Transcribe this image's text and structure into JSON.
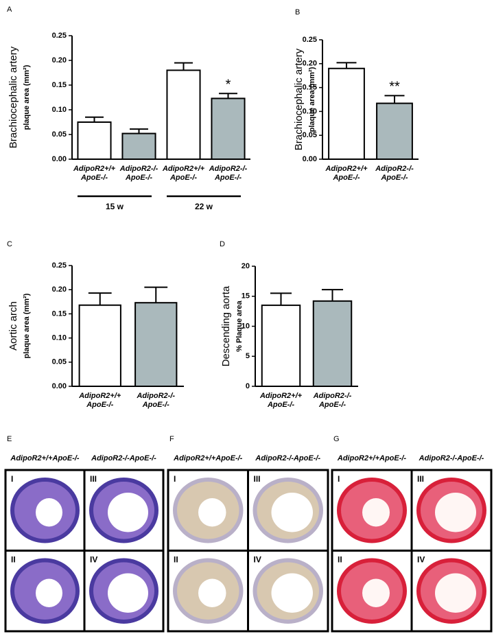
{
  "chart_data": [
    {
      "type": "bar",
      "letter": "A",
      "ylabel": "Brachiocephalic artery",
      "ylabel_sub": "plaque area (mm²)",
      "categories": [
        [
          "AdipoR2+/+",
          "ApoE-/-"
        ],
        [
          "AdipoR2-/-",
          "ApoE-/-"
        ],
        [
          "AdipoR2+/+",
          "ApoE-/-"
        ],
        [
          "AdipoR2-/-",
          "ApoE-/-"
        ]
      ],
      "values": [
        0.075,
        0.052,
        0.18,
        0.123
      ],
      "errors": [
        0.01,
        0.009,
        0.015,
        0.01
      ],
      "colors": [
        "#ffffff",
        "#aab9bc",
        "#ffffff",
        "#aab9bc"
      ],
      "significance": [
        null,
        null,
        null,
        "*"
      ],
      "group_labels": [
        "15 w",
        "22 w"
      ],
      "ylim": [
        0,
        0.25
      ],
      "yticks": [
        {
          "value": 0,
          "label": "0.00"
        },
        {
          "value": 0.05,
          "label": "0.05"
        },
        {
          "value": 0.1,
          "label": "0.10"
        },
        {
          "value": 0.15,
          "label": "0.15"
        },
        {
          "value": 0.2,
          "label": "0.20"
        },
        {
          "value": 0.25,
          "label": "0.25"
        }
      ]
    },
    {
      "type": "bar",
      "letter": "B",
      "ylabel": "Brachiocephalic artery",
      "ylabel_sub": "plaque area (mm²)",
      "categories": [
        [
          "AdipoR2+/+",
          "ApoE-/-"
        ],
        [
          "AdipoR2-/-",
          "ApoE-/-"
        ]
      ],
      "values": [
        0.19,
        0.117
      ],
      "errors": [
        0.012,
        0.016
      ],
      "colors": [
        "#ffffff",
        "#aab9bc"
      ],
      "significance": [
        null,
        "**"
      ],
      "ylim": [
        0,
        0.25
      ],
      "yticks": [
        {
          "value": 0,
          "label": "0.00"
        },
        {
          "value": 0.05,
          "label": "0.05"
        },
        {
          "value": 0.1,
          "label": "0.10"
        },
        {
          "value": 0.15,
          "label": "0.15"
        },
        {
          "value": 0.2,
          "label": "0.20"
        },
        {
          "value": 0.25,
          "label": "0.25"
        }
      ]
    },
    {
      "type": "bar",
      "letter": "C",
      "ylabel": "Aortic arch",
      "ylabel_sub": "plaque area (mm²)",
      "categories": [
        [
          "AdipoR2+/+",
          "ApoE-/-"
        ],
        [
          "AdipoR2-/-",
          "ApoE-/-"
        ]
      ],
      "values": [
        0.168,
        0.173
      ],
      "errors": [
        0.025,
        0.032
      ],
      "colors": [
        "#ffffff",
        "#aab9bc"
      ],
      "ylim": [
        0,
        0.25
      ],
      "yticks": [
        {
          "value": 0,
          "label": "0.00"
        },
        {
          "value": 0.05,
          "label": "0.05"
        },
        {
          "value": 0.1,
          "label": "0.10"
        },
        {
          "value": 0.15,
          "label": "0.15"
        },
        {
          "value": 0.2,
          "label": "0.20"
        },
        {
          "value": 0.25,
          "label": "0.25"
        }
      ]
    },
    {
      "type": "bar",
      "letter": "D",
      "ylabel": "Descending aorta",
      "ylabel_sub": "% Plaque area",
      "categories": [
        [
          "AdipoR2+/+",
          "ApoE-/-"
        ],
        [
          "AdipoR2-/-",
          "ApoE-/-"
        ]
      ],
      "values": [
        13.5,
        14.2
      ],
      "errors": [
        2.0,
        1.9
      ],
      "colors": [
        "#ffffff",
        "#aab9bc"
      ],
      "ylim": [
        0,
        20
      ],
      "yticks": [
        0,
        5,
        10,
        15,
        20
      ]
    }
  ],
  "histology": [
    {
      "letter": "E",
      "headers": [
        "AdipoR2+/+ApoE-/-",
        "AdipoR2-/-ApoE-/-"
      ],
      "quadrants": [
        "I",
        "III",
        "II",
        "IV"
      ]
    },
    {
      "letter": "F",
      "headers": [
        "AdipoR2+/+ApoE-/-",
        "AdipoR2-/-ApoE-/-"
      ],
      "quadrants": [
        "I",
        "III",
        "II",
        "IV"
      ]
    },
    {
      "letter": "G",
      "headers": [
        "AdipoR2+/+ApoE-/-",
        "AdipoR2-/-ApoE-/-"
      ],
      "quadrants": [
        "I",
        "III",
        "II",
        "IV"
      ]
    }
  ]
}
